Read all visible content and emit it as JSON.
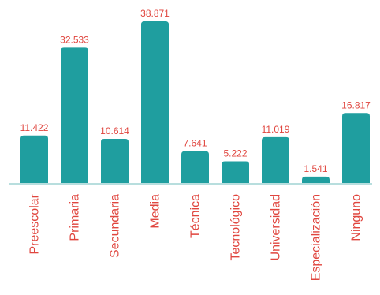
{
  "chart_data": {
    "type": "bar",
    "categories": [
      "Preescolar",
      "Primaria",
      "Secundaria",
      "Media",
      "Técnica",
      "Tecnológico",
      "Universidad",
      "Especialización",
      "Ninguno"
    ],
    "values": [
      11422,
      32533,
      10614,
      38871,
      7641,
      5222,
      11019,
      1541,
      16817
    ],
    "value_labels": [
      "11.422",
      "32.533",
      "10.614",
      "38.871",
      "7.641",
      "5.222",
      "11.019",
      "1.541",
      "16.817"
    ],
    "ylim": [
      0,
      38871
    ],
    "grid": false,
    "legend": "none",
    "colors": {
      "bar": "#1f9e9f",
      "label": "#e0463f",
      "baseline": "#b8dede"
    }
  }
}
